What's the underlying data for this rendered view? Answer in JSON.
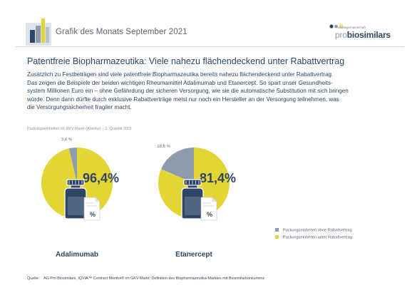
{
  "header": {
    "title": "Grafik des Monats September 2021",
    "brand": {
      "small_text": "Arbeitsgemeinschaft",
      "name_prefix": "pro",
      "name_suffix": "biosimilars"
    }
  },
  "headline": "Patentfreie Biopharmazeutika: Viele nahezu flächendeckend unter Rabattvertrag",
  "intro_lines": [
    "Zusätzlich zu Festbeträgen sind viele patentfreie Biopharmazeutika bereits nahezu flächendeckend unter Rabattvertrag.",
    "Das zeigen die Beispiele der beiden wichtigen Rheumamittel Adalimumab und Etanercept. So spart unser Gesundheits-",
    "system Millionen Euro ein – ohne Gefährdung der sicheren Versorgung, wie sie die automatische Substitution mit sich bringen",
    "würde. Denn dann dürfte durch exklusive Rabattverträge meist nur noch ein Hersteller an der Versorgung teilnehmen, was",
    "die Versorgungssicherheit fragiler macht."
  ],
  "chart_data": {
    "type": "pie",
    "subtitle": "Packungseinheiten im GKV-Markt (Absolut) – 2. Quartal 2021",
    "series": [
      {
        "name": "Packungseinheiten ohne Rabattvertrag",
        "color": "#8c9cae"
      },
      {
        "name": "Packungseinheiten unter Rabattvertrag",
        "color": "#e3d634"
      }
    ],
    "charts": [
      {
        "label": "Adalimumab",
        "values": [
          3.6,
          96.4
        ],
        "value_labels": [
          "3,6 %",
          "96,4%"
        ]
      },
      {
        "label": "Etanercept",
        "values": [
          18.6,
          81.4
        ],
        "value_labels": [
          "18,6 %",
          "81,4%"
        ]
      }
    ],
    "legend_position": "right",
    "icon_symbol": "%"
  },
  "source": {
    "label": "Quelle:",
    "text": "AG Pro Biosimilars, IQVIA™ Contract Monitor® im GKV-Markt; Definition des Biopharmazeutika-Marktes mit Biosimilarkonkurrenz"
  },
  "colors": {
    "yellow": "#e3d634",
    "grey": "#8c9cae",
    "navy": "#2e4566",
    "text": "#2e4566"
  }
}
